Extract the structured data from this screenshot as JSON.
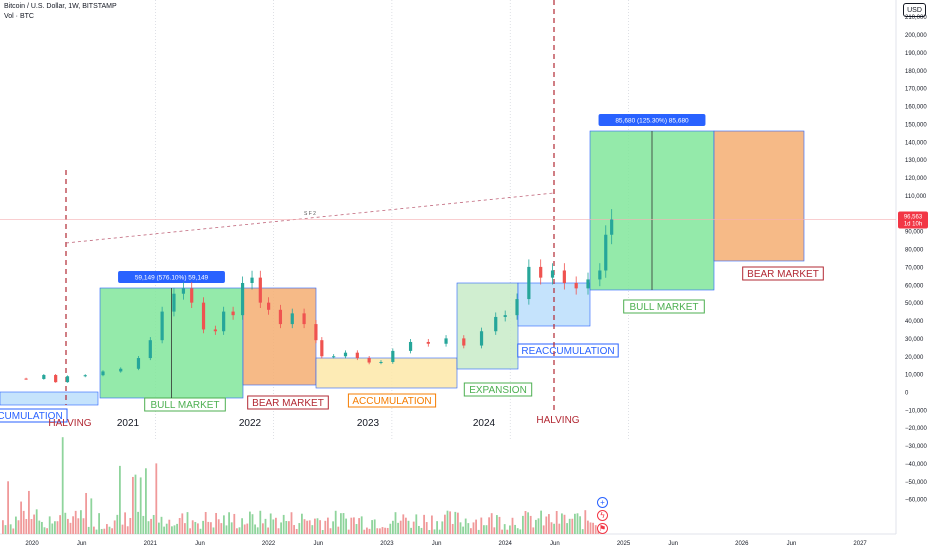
{
  "header": {
    "title": "Bitcoin / U.S. Dollar, 1W, BITSTAMP",
    "volume_label": "Vol · BTC"
  },
  "currency_badge": "USD",
  "chart_data": {
    "type": "candlestick",
    "price_scale": {
      "ticks": [
        "210,000",
        "200,000",
        "190,000",
        "180,000",
        "170,000",
        "160,000",
        "150,000",
        "140,000",
        "130,000",
        "120,000",
        "110,000",
        "100,000",
        "90,000",
        "80,000",
        "70,000",
        "60,000",
        "50,000",
        "40,000",
        "30,000",
        "20,000",
        "10,000",
        "0",
        "−10,000",
        "−20,000",
        "−30,000",
        "−40,000",
        "−50,000",
        "−60,000"
      ],
      "ylim": [
        -62000,
        212000
      ]
    },
    "time_scale": {
      "ticks": [
        "2020",
        "Jun",
        "2021",
        "Jun",
        "2022",
        "Jun",
        "2023",
        "Jun",
        "2024",
        "Jun",
        "2025",
        "Jun",
        "2026",
        "Jun",
        "2027"
      ]
    },
    "year_labels": [
      "2021",
      "2022",
      "2023",
      "2024"
    ],
    "current_price": {
      "value": "96,563",
      "countdown": "1d 10h",
      "color": "#f23645"
    },
    "price_series": [
      {
        "t": 2019.8,
        "v": 7500
      },
      {
        "t": 2019.95,
        "v": 7300
      },
      {
        "t": 2020.1,
        "v": 9500
      },
      {
        "t": 2020.2,
        "v": 5500
      },
      {
        "t": 2020.3,
        "v": 8800
      },
      {
        "t": 2020.45,
        "v": 9400
      },
      {
        "t": 2020.6,
        "v": 11500
      },
      {
        "t": 2020.75,
        "v": 13000
      },
      {
        "t": 2020.9,
        "v": 19000
      },
      {
        "t": 2021.0,
        "v": 29000
      },
      {
        "t": 2021.1,
        "v": 45000
      },
      {
        "t": 2021.2,
        "v": 55000
      },
      {
        "t": 2021.28,
        "v": 58000
      },
      {
        "t": 2021.35,
        "v": 50000
      },
      {
        "t": 2021.45,
        "v": 35000
      },
      {
        "t": 2021.55,
        "v": 34000
      },
      {
        "t": 2021.62,
        "v": 45000
      },
      {
        "t": 2021.7,
        "v": 43000
      },
      {
        "t": 2021.78,
        "v": 61000
      },
      {
        "t": 2021.86,
        "v": 64000
      },
      {
        "t": 2021.93,
        "v": 50000
      },
      {
        "t": 2022.0,
        "v": 46000
      },
      {
        "t": 2022.1,
        "v": 38000
      },
      {
        "t": 2022.2,
        "v": 44000
      },
      {
        "t": 2022.3,
        "v": 38000
      },
      {
        "t": 2022.4,
        "v": 29000
      },
      {
        "t": 2022.45,
        "v": 20000
      },
      {
        "t": 2022.55,
        "v": 20000
      },
      {
        "t": 2022.65,
        "v": 22000
      },
      {
        "t": 2022.75,
        "v": 19000
      },
      {
        "t": 2022.85,
        "v": 16500
      },
      {
        "t": 2022.95,
        "v": 16800
      },
      {
        "t": 2023.05,
        "v": 23000
      },
      {
        "t": 2023.2,
        "v": 28000
      },
      {
        "t": 2023.35,
        "v": 27000
      },
      {
        "t": 2023.5,
        "v": 30000
      },
      {
        "t": 2023.65,
        "v": 26000
      },
      {
        "t": 2023.8,
        "v": 34000
      },
      {
        "t": 2023.92,
        "v": 42000
      },
      {
        "t": 2024.0,
        "v": 43000
      },
      {
        "t": 2024.1,
        "v": 52000
      },
      {
        "t": 2024.2,
        "v": 70000
      },
      {
        "t": 2024.3,
        "v": 64000
      },
      {
        "t": 2024.4,
        "v": 68000
      },
      {
        "t": 2024.5,
        "v": 61000
      },
      {
        "t": 2024.6,
        "v": 58000
      },
      {
        "t": 2024.7,
        "v": 63000
      },
      {
        "t": 2024.8,
        "v": 68000
      },
      {
        "t": 2024.85,
        "v": 88000
      },
      {
        "t": 2024.9,
        "v": 96563
      }
    ],
    "zones": [
      {
        "label": "CUMULATION",
        "color": "blue",
        "label_color": "#2962ff"
      },
      {
        "label": "BULL MARKET",
        "color": "green",
        "label_color": "#4caf50",
        "measure": "59,149 (576.10%) 59,149"
      },
      {
        "label": "BEAR MARKET",
        "color": "orange",
        "label_color": "#b22833"
      },
      {
        "label": "ACCUMULATION",
        "color": "yellow",
        "label_color": "#f57c00"
      },
      {
        "label": "EXPANSION",
        "color": "lightgreen",
        "label_color": "#4caf50"
      },
      {
        "label": "REACCUMULATION",
        "color": "blue",
        "label_color": "#2962ff"
      },
      {
        "label": "BULL MARKET",
        "color": "green",
        "label_color": "#4caf50",
        "measure": "85,680 (125.30%) 85,680"
      },
      {
        "label": "BEAR MARKET",
        "color": "orange",
        "label_color": "#b22833"
      }
    ],
    "halvings": [
      {
        "label": "HALVING",
        "color": "#b22833"
      },
      {
        "label": "HALVING",
        "color": "#b22833"
      }
    ],
    "trendline_label": "S F 2",
    "colors": {
      "up": "#26a69a",
      "down": "#ef5350",
      "vol_up": "#8fd49c",
      "vol_down": "#f0999a"
    }
  },
  "icons": [
    "plus-circle-icon",
    "lightning-icon",
    "flag-icon"
  ]
}
